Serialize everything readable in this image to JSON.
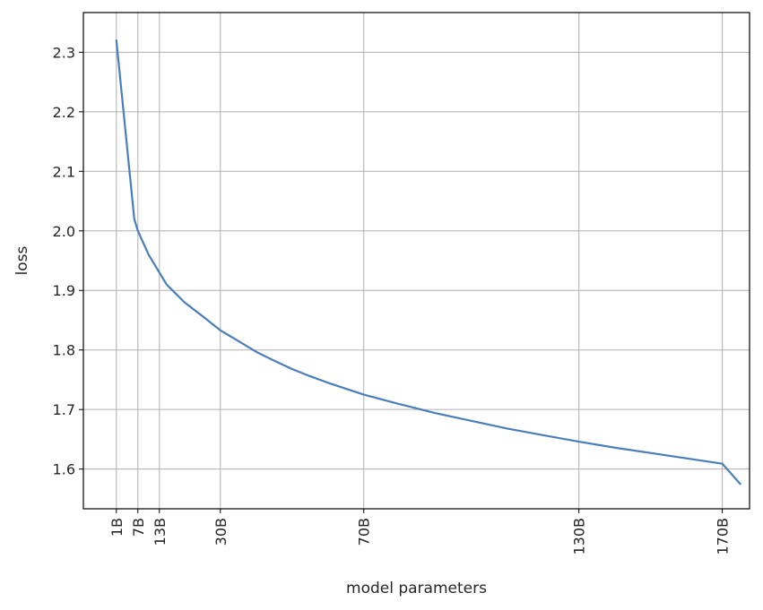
{
  "chart_data": {
    "type": "line",
    "title": "",
    "xlabel": "model parameters",
    "ylabel": "loss",
    "xlim": [
      -8.2,
      177.6
    ],
    "ylim": [
      1.5333,
      2.3667
    ],
    "grid": true,
    "line_color": "#4a7ebb",
    "x_ticks": [
      {
        "value": 1,
        "label": "1B"
      },
      {
        "value": 7,
        "label": "7B"
      },
      {
        "value": 13,
        "label": "13B"
      },
      {
        "value": 30,
        "label": "30B"
      },
      {
        "value": 70,
        "label": "70B"
      },
      {
        "value": 130,
        "label": "130B"
      },
      {
        "value": 170,
        "label": "170B"
      }
    ],
    "y_ticks": [
      {
        "value": 1.6,
        "label": "1.6"
      },
      {
        "value": 1.7,
        "label": "1.7"
      },
      {
        "value": 1.8,
        "label": "1.8"
      },
      {
        "value": 1.9,
        "label": "1.9"
      },
      {
        "value": 2.0,
        "label": "2.0"
      },
      {
        "value": 2.1,
        "label": "2.1"
      },
      {
        "value": 2.2,
        "label": "2.2"
      },
      {
        "value": 2.3,
        "label": "2.3"
      }
    ],
    "series": [
      {
        "x": [
          1,
          6,
          7,
          10,
          13,
          15,
          20,
          25,
          30,
          35,
          40,
          45,
          50,
          55,
          60,
          65,
          70,
          80,
          90,
          100,
          110,
          120,
          130,
          140,
          150,
          160,
          170,
          175
        ],
        "y": [
          2.32,
          2.02,
          2.0,
          1.96,
          1.93,
          1.91,
          1.88,
          1.857,
          1.833,
          1.815,
          1.797,
          1.782,
          1.768,
          1.756,
          1.745,
          1.735,
          1.725,
          1.709,
          1.694,
          1.681,
          1.668,
          1.657,
          1.646,
          1.636,
          1.627,
          1.618,
          1.609,
          1.575
        ]
      }
    ]
  }
}
